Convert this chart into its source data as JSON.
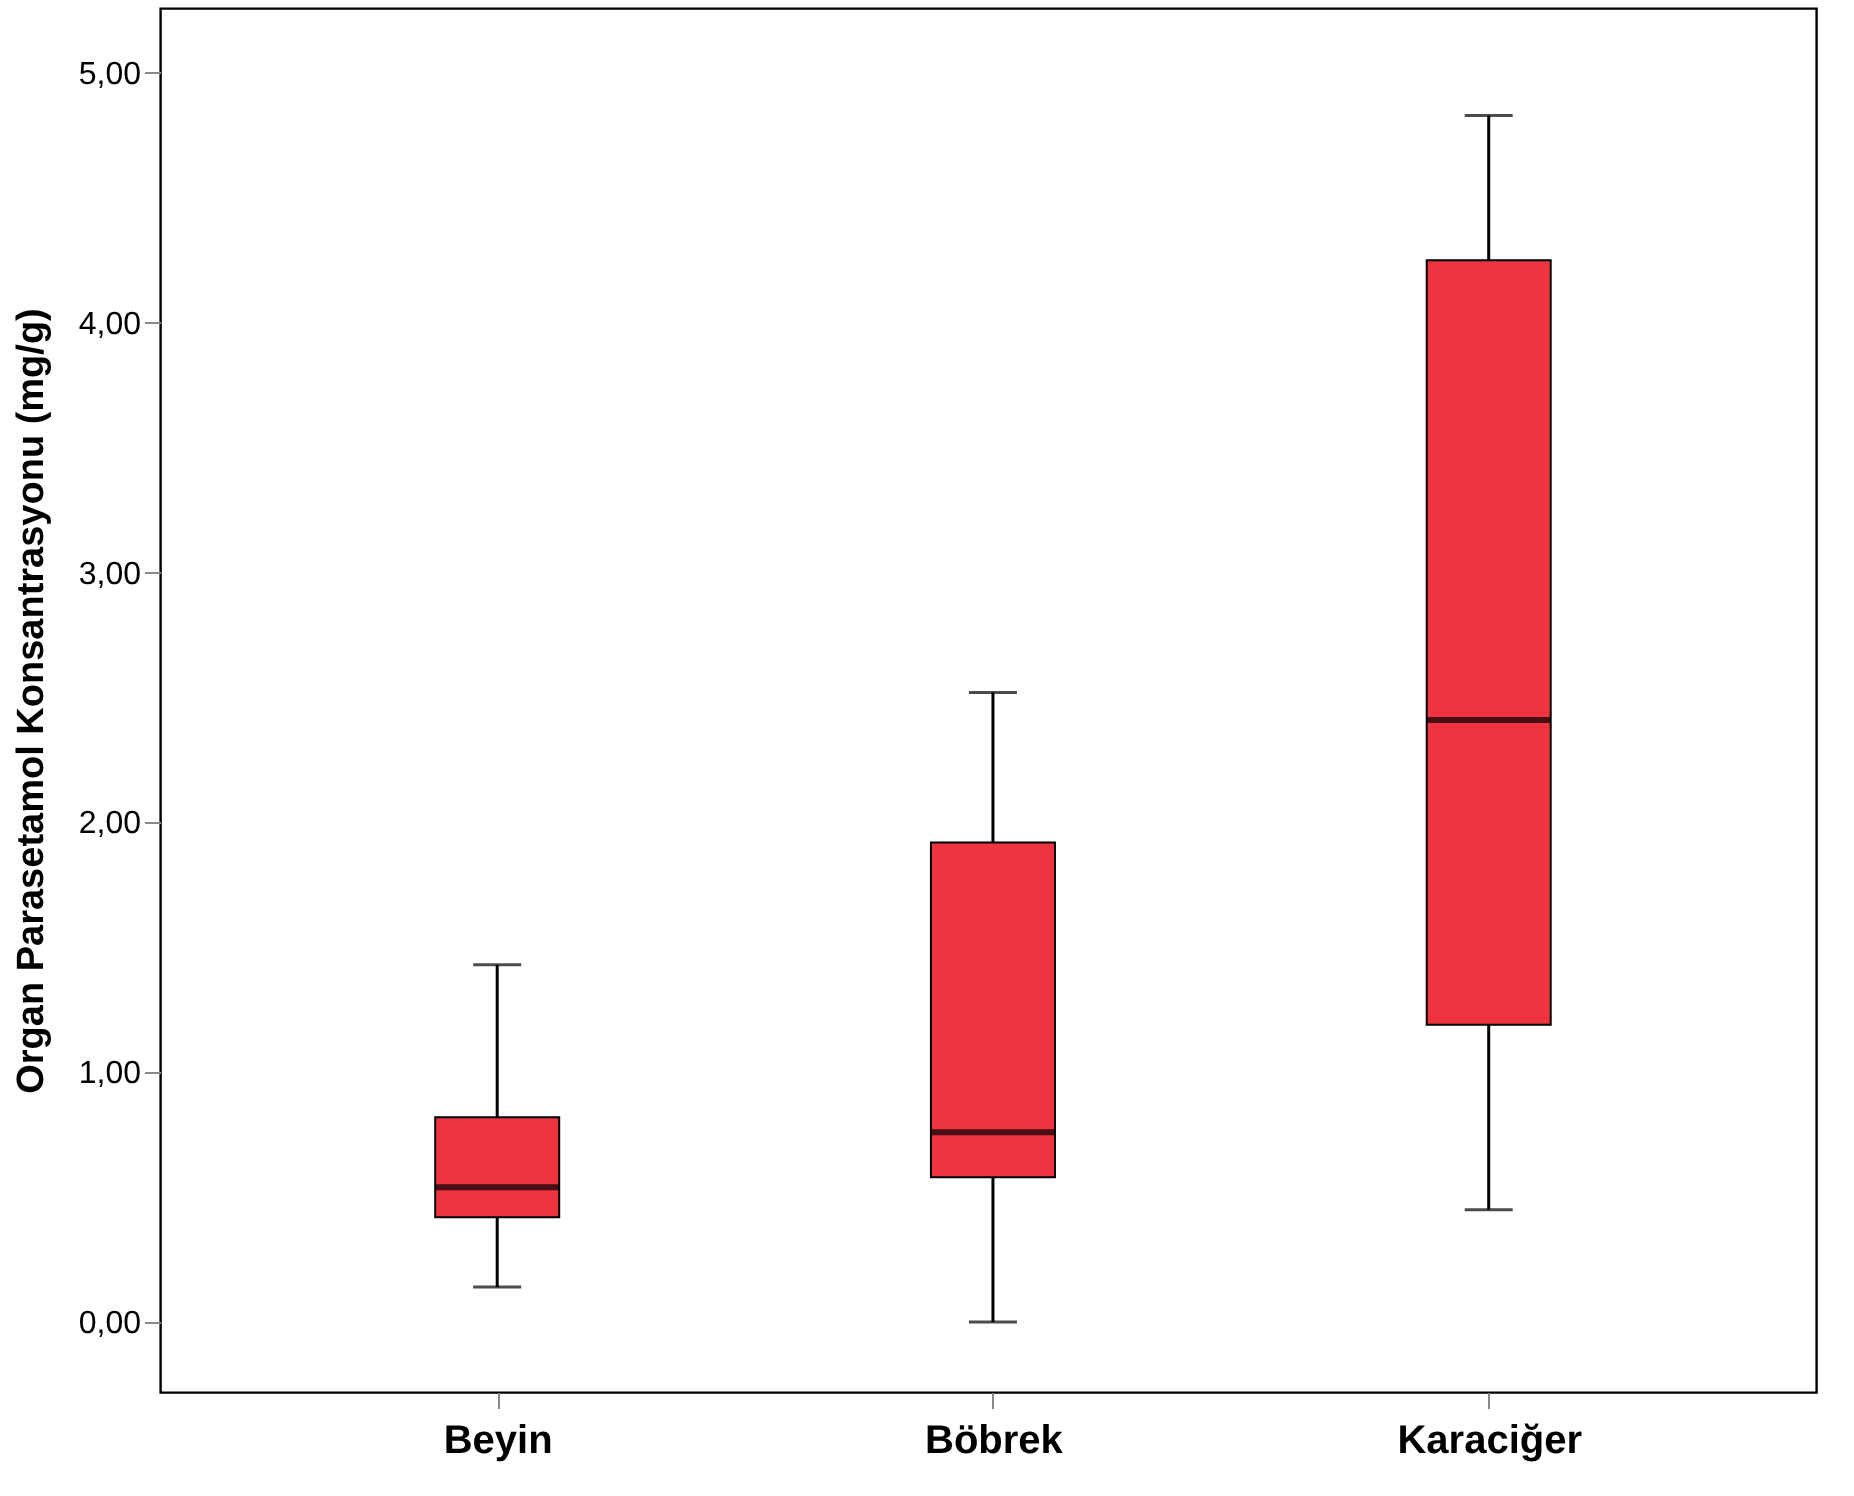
{
  "chart_data": {
    "type": "box",
    "ylabel": "Organ Parasetamol Konsantrasyonu (mg/g)",
    "categories": [
      "Beyin",
      "Böbrek",
      "Karaciğer"
    ],
    "boxes": [
      {
        "low": 0.14,
        "q1": 0.42,
        "median": 0.54,
        "q3": 0.82,
        "high": 1.43
      },
      {
        "low": 0.0,
        "q1": 0.58,
        "median": 0.76,
        "q3": 1.92,
        "high": 2.52
      },
      {
        "low": 0.45,
        "q1": 1.19,
        "median": 2.41,
        "q3": 4.25,
        "high": 4.83
      }
    ],
    "colors": [
      "#ef3340",
      "#ef3340",
      "#ef3340"
    ],
    "ylim": [
      -0.28,
      5.26
    ],
    "yticks": [
      {
        "value": 0,
        "label": "0,00"
      },
      {
        "value": 1,
        "label": "1,00"
      },
      {
        "value": 2,
        "label": "2,00"
      },
      {
        "value": 3,
        "label": "3,00"
      },
      {
        "value": 4,
        "label": "4,00"
      },
      {
        "value": 5,
        "label": "5,00"
      }
    ],
    "grid": false
  }
}
